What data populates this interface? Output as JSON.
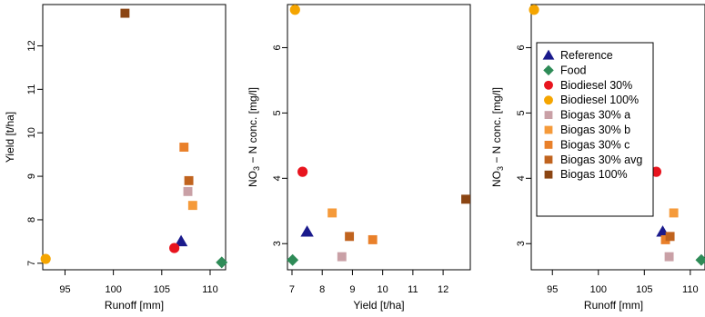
{
  "colors": {
    "Reference": "#1a1a8c",
    "Food": "#2e8b57",
    "Biodiesel 30%": "#e8141e",
    "Biodiesel 100%": "#f5a500",
    "Biogas 30% a": "#c9a0a6",
    "Biogas 30% b": "#f59a3a",
    "Biogas 30% c": "#e9802a",
    "Biogas 30% avg": "#c0631e",
    "Biogas 100%": "#8b4513"
  },
  "shapes": {
    "Reference": "triangle",
    "Food": "diamond",
    "Biodiesel 30%": "circle",
    "Biodiesel 100%": "circle",
    "Biogas 30% a": "square",
    "Biogas 30% b": "square",
    "Biogas 30% c": "square",
    "Biogas 30% avg": "square",
    "Biogas 100%": "square"
  },
  "chart_data": [
    {
      "type": "scatter",
      "xlabel": "Runoff [mm]",
      "ylabel": "Yield [t/ha]",
      "xlim": [
        92.7,
        111.6
      ],
      "ylim": [
        6.85,
        12.95
      ],
      "xticks": [
        95,
        100,
        105,
        110
      ],
      "yticks": [
        7,
        8,
        9,
        10,
        11,
        12
      ],
      "legend": "none",
      "series": [
        {
          "name": "Reference",
          "points": [
            [
              107.0,
              7.5
            ]
          ]
        },
        {
          "name": "Food",
          "points": [
            [
              111.2,
              7.02
            ]
          ]
        },
        {
          "name": "Biodiesel 30%",
          "points": [
            [
              106.3,
              7.35
            ]
          ]
        },
        {
          "name": "Biodiesel 100%",
          "points": [
            [
              93.0,
              7.1
            ]
          ]
        },
        {
          "name": "Biogas 30% a",
          "points": [
            [
              107.7,
              8.65
            ]
          ]
        },
        {
          "name": "Biogas 30% b",
          "points": [
            [
              108.2,
              8.33
            ]
          ]
        },
        {
          "name": "Biogas 30% c",
          "points": [
            [
              107.3,
              9.67
            ]
          ]
        },
        {
          "name": "Biogas 30% avg",
          "points": [
            [
              107.8,
              8.9
            ]
          ]
        },
        {
          "name": "Biogas 100%",
          "points": [
            [
              101.2,
              12.75
            ]
          ]
        }
      ]
    },
    {
      "type": "scatter",
      "xlabel": "Yield [t/ha]",
      "ylabel": "NO3-N conc. [mg/l]",
      "ylabel_parts": {
        "pre": "NO",
        "sub": "3",
        "post": " − N conc. [mg/l]"
      },
      "xlim": [
        6.85,
        12.9
      ],
      "ylim": [
        2.6,
        6.66
      ],
      "xticks": [
        7,
        8,
        9,
        10,
        11,
        12
      ],
      "yticks": [
        3,
        4,
        5,
        6
      ],
      "legend": "none",
      "series": [
        {
          "name": "Reference",
          "points": [
            [
              7.5,
              3.18
            ]
          ]
        },
        {
          "name": "Food",
          "points": [
            [
              7.02,
              2.75
            ]
          ]
        },
        {
          "name": "Biodiesel 30%",
          "points": [
            [
              7.35,
              4.1
            ]
          ]
        },
        {
          "name": "Biodiesel 100%",
          "points": [
            [
              7.1,
              6.58
            ]
          ]
        },
        {
          "name": "Biogas 30% a",
          "points": [
            [
              8.65,
              2.8
            ]
          ]
        },
        {
          "name": "Biogas 30% b",
          "points": [
            [
              8.33,
              3.47
            ]
          ]
        },
        {
          "name": "Biogas 30% c",
          "points": [
            [
              9.67,
              3.06
            ]
          ]
        },
        {
          "name": "Biogas 30% avg",
          "points": [
            [
              8.9,
              3.11
            ]
          ]
        },
        {
          "name": "Biogas 100%",
          "points": [
            [
              12.75,
              3.68
            ]
          ]
        }
      ]
    },
    {
      "type": "scatter",
      "xlabel": "Runoff [mm]",
      "ylabel": "NO3-N conc. [mg/l]",
      "ylabel_parts": {
        "pre": "NO",
        "sub": "3",
        "post": " − N conc. [mg/l]"
      },
      "xlim": [
        92.7,
        111.6
      ],
      "ylim": [
        2.6,
        6.66
      ],
      "xticks": [
        95,
        100,
        105,
        110
      ],
      "yticks": [
        3,
        4,
        5,
        6
      ],
      "legend": "top-left",
      "legend_entries": [
        "Reference",
        "Food",
        "Biodiesel 30%",
        "Biodiesel 100%",
        "Biogas 30% a",
        "Biogas 30% b",
        "Biogas 30% c",
        "Biogas 30% avg",
        "Biogas 100%"
      ],
      "series": [
        {
          "name": "Reference",
          "points": [
            [
              107.0,
              3.18
            ]
          ]
        },
        {
          "name": "Food",
          "points": [
            [
              111.2,
              2.75
            ]
          ]
        },
        {
          "name": "Biodiesel 30%",
          "points": [
            [
              106.3,
              4.1
            ]
          ]
        },
        {
          "name": "Biodiesel 100%",
          "points": [
            [
              93.0,
              6.58
            ]
          ]
        },
        {
          "name": "Biogas 30% a",
          "points": [
            [
              107.7,
              2.8
            ]
          ]
        },
        {
          "name": "Biogas 30% b",
          "points": [
            [
              108.2,
              3.47
            ]
          ]
        },
        {
          "name": "Biogas 30% c",
          "points": [
            [
              107.3,
              3.06
            ]
          ]
        },
        {
          "name": "Biogas 30% avg",
          "points": [
            [
              107.8,
              3.11
            ]
          ]
        },
        {
          "name": "Biogas 100%",
          "points": [
            [
              101.2,
              3.68
            ]
          ]
        }
      ]
    }
  ]
}
